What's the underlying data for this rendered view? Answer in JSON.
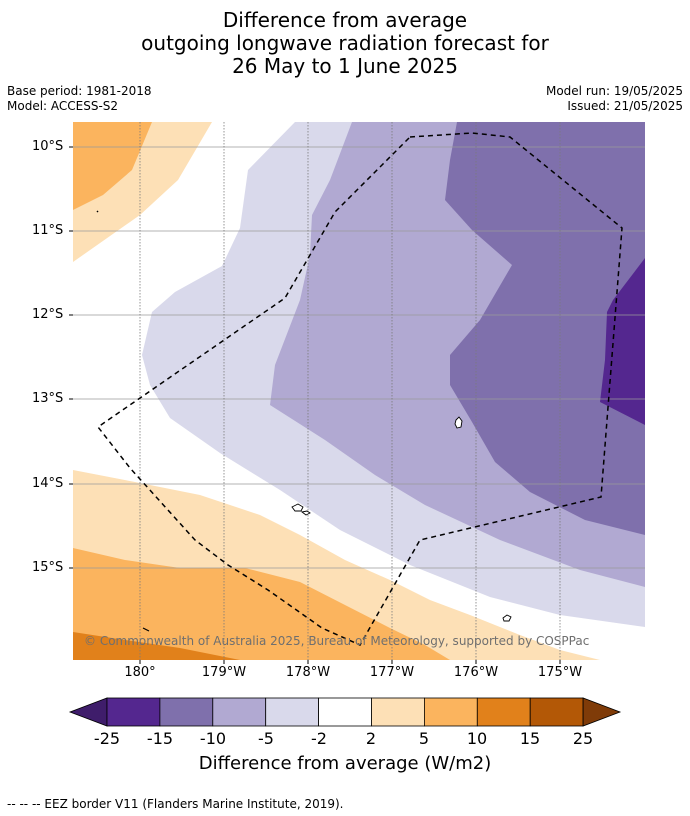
{
  "title_lines": [
    "Difference from average",
    "outgoing longwave radiation forecast for",
    "26 May to 1 June 2025"
  ],
  "meta_left": [
    "Base period: 1981-2018",
    "Model: ACCESS-S2"
  ],
  "meta_right": [
    "Model run: 19/05/2025",
    "Issued: 21/05/2025"
  ],
  "lat_labels": [
    "10°S",
    "11°S",
    "12°S",
    "13°S",
    "14°S",
    "15°S"
  ],
  "lon_labels": [
    "180°",
    "179°W",
    "178°W",
    "177°W",
    "176°W",
    "175°W"
  ],
  "colorbar": {
    "ticks": [
      "-25",
      "-15",
      "-10",
      "-5",
      "-2",
      "2",
      "5",
      "10",
      "15",
      "25"
    ],
    "colors": [
      "#3f1d6b",
      "#54278f",
      "#7f70ac",
      "#b1a9d2",
      "#d9d9eb",
      "#ffffff",
      "#fde0b6",
      "#fbb45e",
      "#e1811b",
      "#b35806",
      "#7f3b08"
    ],
    "title": "Difference from average (W/m2)"
  },
  "copyright": "© Commonwealth of Australia 2025, Bureau of Meteorology, supported by COSPPac",
  "footer": "-- -- -- EEZ border V11 (Flanders Marine Institute, 2019)."
}
